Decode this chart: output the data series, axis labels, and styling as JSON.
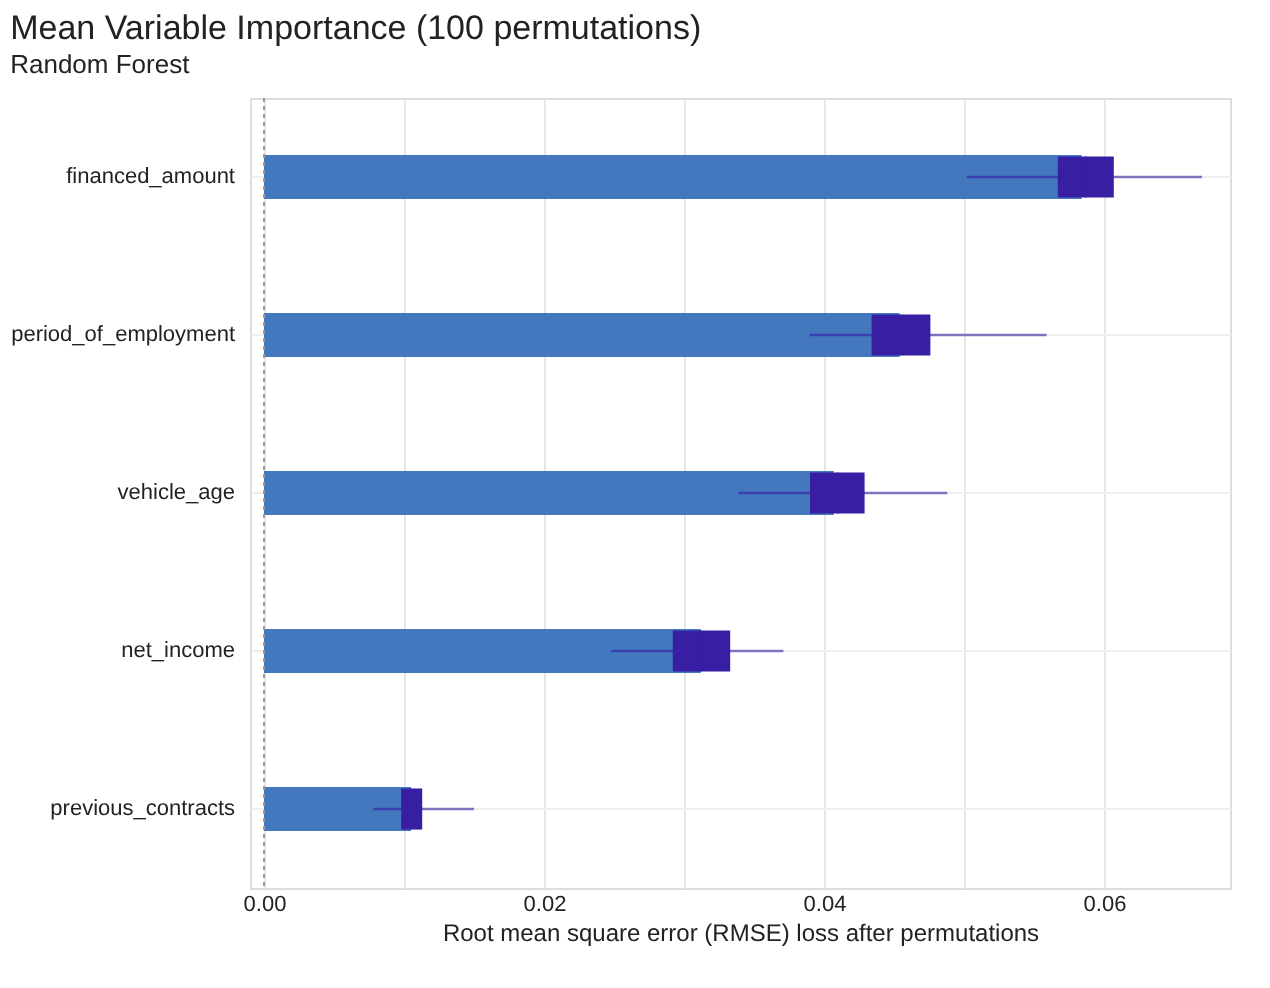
{
  "chart_data": {
    "type": "bar",
    "orientation": "horizontal",
    "title": "Mean Variable Importance (100 permutations)",
    "subtitle": "Random Forest",
    "xlabel": "Root mean square error (RMSE) loss after permutations",
    "categories": [
      "financed_amount",
      "period_of_employment",
      "vehicle_age",
      "net_income",
      "previous_contracts"
    ],
    "series": [
      {
        "color": "#4378bf",
        "values": [
          0.0584,
          0.0454,
          0.0407,
          0.0312,
          0.0105
        ]
      },
      {
        "type": "box",
        "color": "#371ea3",
        "boxes": [
          {
            "low": 0.0502,
            "q1": 0.0567,
            "median": 0.0587,
            "q3": 0.0607,
            "high": 0.067
          },
          {
            "low": 0.039,
            "q1": 0.0434,
            "median": 0.0455,
            "q3": 0.0476,
            "high": 0.0559
          },
          {
            "low": 0.0339,
            "q1": 0.039,
            "median": 0.041,
            "q3": 0.0429,
            "high": 0.0488
          },
          {
            "low": 0.0248,
            "q1": 0.0292,
            "median": 0.0312,
            "q3": 0.0333,
            "high": 0.0371
          },
          {
            "low": 0.0078,
            "q1": 0.0098,
            "median": 0.0105,
            "q3": 0.0113,
            "high": 0.015
          }
        ]
      }
    ],
    "xlim": [
      -0.001,
      0.069
    ],
    "xticks": [
      "0.00",
      {
        "value": 0.01,
        "label": null
      },
      {
        "value": 0.02,
        "label": "0.02"
      },
      {
        "value": 0.03,
        "label": null
      },
      {
        "value": 0.04,
        "label": "0.04"
      },
      {
        "value": 0.05,
        "label": null
      },
      {
        "value": 0.06,
        "label": "0.06"
      }
    ],
    "ref_lines": [
      {
        "axis": "x",
        "value": 0,
        "color": "#999999",
        "line_style": "dotted"
      }
    ],
    "grid": true
  }
}
